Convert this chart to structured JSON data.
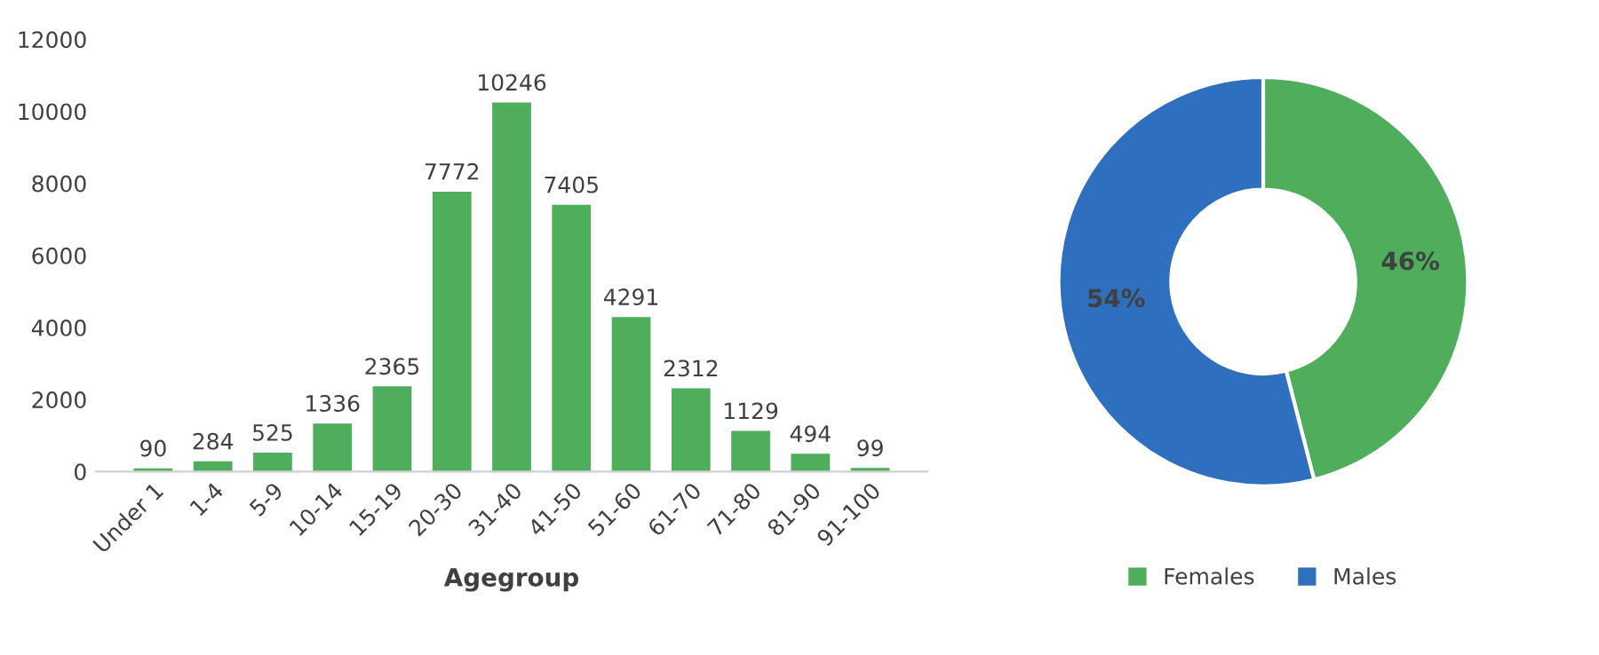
{
  "chart_data": [
    {
      "type": "bar",
      "xlabel": "Agegroup",
      "categories": [
        "Under 1",
        "1-4",
        "5-9",
        "10-14",
        "15-19",
        "20-30",
        "31-40",
        "41-50",
        "51-60",
        "61-70",
        "71-80",
        "81-90",
        "91-100"
      ],
      "values": [
        90,
        284,
        525,
        1336,
        2365,
        7772,
        10246,
        7405,
        4291,
        2312,
        1129,
        494,
        99
      ],
      "color": "#4eae5b",
      "ylim": [
        0,
        12000
      ],
      "yticks": [
        0,
        2000,
        4000,
        6000,
        8000,
        10000,
        12000
      ],
      "grid": false,
      "data_labels": true
    },
    {
      "type": "donut",
      "categories": [
        "Females",
        "Males"
      ],
      "values": [
        46,
        54
      ],
      "colors": [
        "#4eae5b",
        "#2e6fbf"
      ],
      "value_labels": [
        "46%",
        "54%"
      ],
      "legend": "bottom"
    }
  ]
}
